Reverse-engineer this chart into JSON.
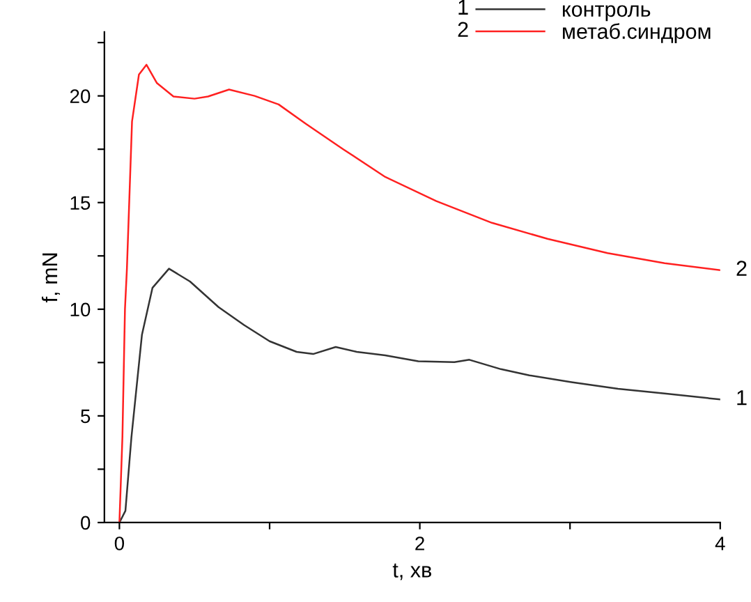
{
  "chart_data": {
    "type": "line",
    "xlabel": "t, хв",
    "ylabel": "f, mN",
    "xlim": [
      -0.1,
      4
    ],
    "ylim": [
      0,
      23
    ],
    "xticks": [
      0,
      {
        "value": 1,
        "label": null
      },
      2,
      {
        "value": 3,
        "label": null
      },
      4
    ],
    "yticks": [
      0,
      {
        "value": 2.5,
        "label": null
      },
      5,
      {
        "value": 7.5,
        "label": null
      },
      10,
      {
        "value": 12.5,
        "label": null
      },
      15,
      {
        "value": 17.5,
        "label": null
      },
      20,
      {
        "value": 22.5,
        "label": null
      }
    ],
    "grid": false,
    "legend": "top right",
    "series": [
      {
        "name": "контроль",
        "color": "#333333",
        "x": [
          0,
          0.04,
          0.08,
          0.15,
          0.22,
          0.33,
          0.47,
          0.66,
          0.83,
          1.0,
          1.18,
          1.29,
          1.44,
          1.58,
          1.77,
          1.99,
          2.23,
          2.33,
          2.54,
          2.73,
          3.01,
          3.32,
          3.63,
          4.0
        ],
        "values": [
          0,
          0.55,
          4.0,
          8.8,
          11.0,
          11.9,
          11.3,
          10.1,
          9.26,
          8.5,
          8.0,
          7.9,
          8.23,
          8.0,
          7.84,
          7.56,
          7.52,
          7.63,
          7.19,
          6.9,
          6.58,
          6.27,
          6.05,
          5.77
        ]
      },
      {
        "name": "метаб.синдром",
        "color": "#ff2020",
        "x": [
          0,
          0.02,
          0.037,
          0.05,
          0.084,
          0.13,
          0.18,
          0.25,
          0.36,
          0.5,
          0.59,
          0.73,
          0.9,
          1.06,
          1.24,
          1.49,
          1.77,
          2.11,
          2.48,
          2.85,
          3.25,
          3.63,
          4.0
        ],
        "values": [
          0,
          4.0,
          10.0,
          11.9,
          18.8,
          21.0,
          21.46,
          20.6,
          19.97,
          19.87,
          19.97,
          20.3,
          20.0,
          19.6,
          18.7,
          17.5,
          16.2,
          15.07,
          14.05,
          13.3,
          12.63,
          12.16,
          11.83
        ]
      }
    ],
    "annotations": [
      "1",
      "2",
      {
        "text": "1",
        "x": 4,
        "y": 5.77
      },
      {
        "text": "2",
        "x": 4,
        "y": 11.83
      }
    ]
  }
}
